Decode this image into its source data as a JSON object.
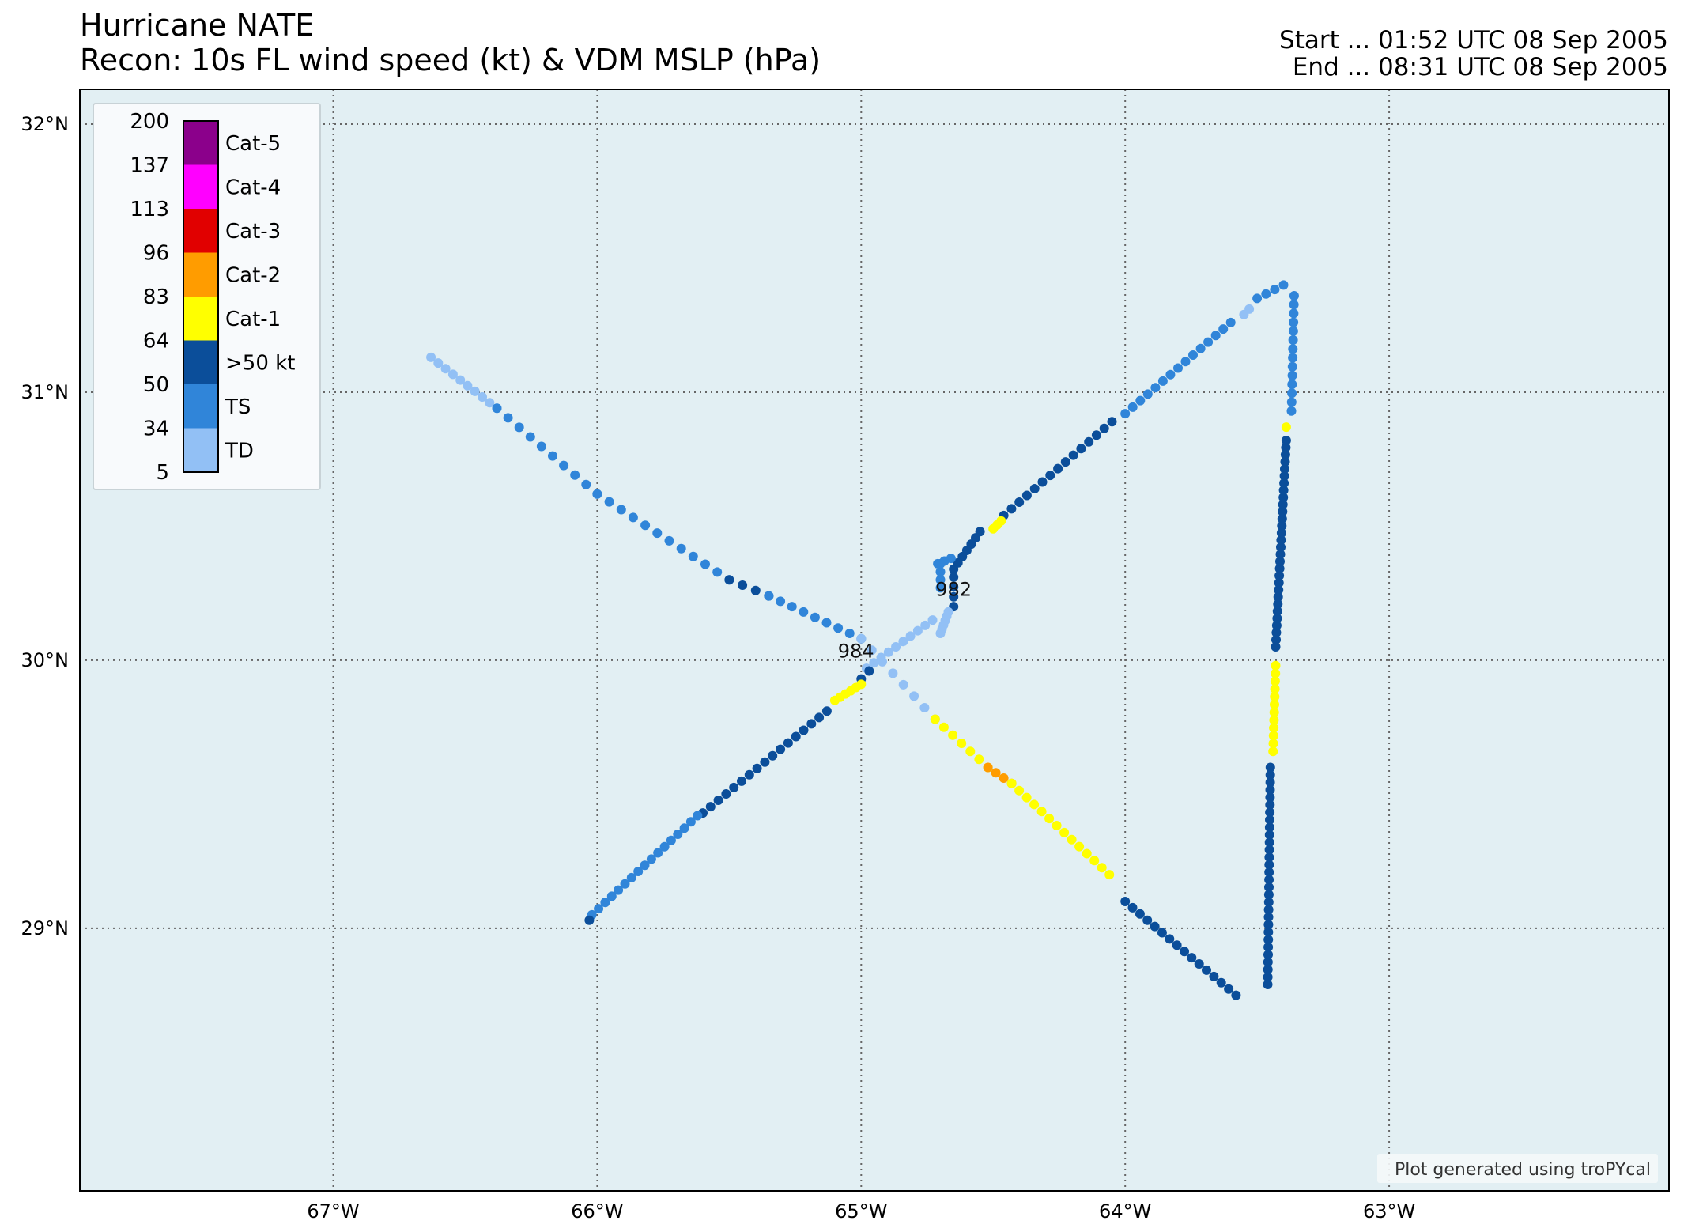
{
  "header": {
    "title_line1": "Hurricane NATE",
    "title_line2": "Recon: 10s FL wind speed (kt) & VDM MSLP (hPa)",
    "start_line": "Start ... 01:52 UTC 08 Sep 2005",
    "end_line": "End ... 08:31 UTC 08 Sep 2005"
  },
  "map": {
    "lon_range": [
      -67.96,
      -61.94
    ],
    "lat_range": [
      28.02,
      32.13
    ],
    "lon_ticks": [
      -67,
      -66,
      -65,
      -64,
      -63
    ],
    "lon_tick_labels": [
      "67°W",
      "66°W",
      "65°W",
      "64°W",
      "63°W"
    ],
    "lat_ticks": [
      29,
      30,
      31,
      32
    ],
    "lat_tick_labels": [
      "29°N",
      "30°N",
      "31°N",
      "32°N"
    ],
    "ocean_color": "#e2eff3",
    "grid": "dotted"
  },
  "legend": {
    "bounds": [
      "5",
      "34",
      "50",
      "64",
      "83",
      "96",
      "113",
      "137",
      "200"
    ],
    "categories": [
      {
        "label": "TD",
        "color": "#92c0f5"
      },
      {
        "label": "TS",
        "color": "#3085d9"
      },
      {
        "label": ">50 kt",
        "color": "#0b4e9a"
      },
      {
        "label": "Cat-1",
        "color": "#ffff00"
      },
      {
        "label": "Cat-2",
        "color": "#ff9c00"
      },
      {
        "label": "Cat-3",
        "color": "#e10000"
      },
      {
        "label": "Cat-4",
        "color": "#ff00ff"
      },
      {
        "label": "Cat-5",
        "color": "#8b008b"
      }
    ]
  },
  "mslp_labels": [
    {
      "text": "984",
      "lon": -65.02,
      "lat": 30.01
    },
    {
      "text": "982",
      "lon": -64.65,
      "lat": 30.24
    }
  ],
  "chart_data": {
    "type": "scatter",
    "x_label": "longitude",
    "y_label": "latitude",
    "segments": [
      {
        "from": [
          -66.63,
          31.13
        ],
        "to": [
          -66.38,
          30.94
        ],
        "n": 10,
        "cat": "TD"
      },
      {
        "from": [
          -66.38,
          30.94
        ],
        "to": [
          -66.0,
          30.62
        ],
        "n": 10,
        "cat": "TS"
      },
      {
        "from": [
          -66.0,
          30.62
        ],
        "to": [
          -65.5,
          30.3
        ],
        "n": 12,
        "cat": "TS"
      },
      {
        "from": [
          -65.5,
          30.3
        ],
        "to": [
          -65.35,
          30.24
        ],
        "n": 4,
        "cat": ">50 kt"
      },
      {
        "from": [
          -65.35,
          30.24
        ],
        "to": [
          -65.0,
          30.08
        ],
        "n": 9,
        "cat": "TS"
      },
      {
        "from": [
          -65.0,
          30.08
        ],
        "to": [
          -64.72,
          29.78
        ],
        "n": 8,
        "cat": "TD"
      },
      {
        "from": [
          -64.72,
          29.78
        ],
        "to": [
          -64.52,
          29.6
        ],
        "n": 7,
        "cat": "Cat-1"
      },
      {
        "from": [
          -64.52,
          29.6
        ],
        "to": [
          -64.43,
          29.54
        ],
        "n": 4,
        "cat": "Cat-2"
      },
      {
        "from": [
          -64.43,
          29.54
        ],
        "to": [
          -64.06,
          29.2
        ],
        "n": 14,
        "cat": "Cat-1"
      },
      {
        "from": [
          -64.0,
          29.1
        ],
        "to": [
          -63.58,
          28.75
        ],
        "n": 16,
        "cat": ">50 kt"
      },
      {
        "from": [
          -63.46,
          28.79
        ],
        "to": [
          -63.45,
          29.6
        ],
        "n": 30,
        "cat": ">50 kt"
      },
      {
        "from": [
          -63.44,
          29.66
        ],
        "to": [
          -63.43,
          29.98
        ],
        "n": 12,
        "cat": "Cat-1"
      },
      {
        "from": [
          -63.43,
          30.05
        ],
        "to": [
          -63.39,
          30.82
        ],
        "n": 30,
        "cat": ">50 kt"
      },
      {
        "from": [
          -63.39,
          30.87
        ],
        "to": [
          -63.39,
          30.87
        ],
        "n": 1,
        "cat": "Cat-1"
      },
      {
        "from": [
          -63.37,
          30.93
        ],
        "to": [
          -63.36,
          31.36
        ],
        "n": 14,
        "cat": "TS"
      },
      {
        "from": [
          -63.4,
          31.4
        ],
        "to": [
          -63.5,
          31.35
        ],
        "n": 4,
        "cat": "TS"
      },
      {
        "from": [
          -63.53,
          31.31
        ],
        "to": [
          -63.55,
          31.29
        ],
        "n": 2,
        "cat": "TD"
      },
      {
        "from": [
          -63.6,
          31.26
        ],
        "to": [
          -64.0,
          30.92
        ],
        "n": 15,
        "cat": "TS"
      },
      {
        "from": [
          -64.05,
          30.89
        ],
        "to": [
          -64.46,
          30.54
        ],
        "n": 15,
        "cat": ">50 kt"
      },
      {
        "from": [
          -64.47,
          30.52
        ],
        "to": [
          -64.5,
          30.49
        ],
        "n": 3,
        "cat": "Cat-1"
      },
      {
        "from": [
          -64.55,
          30.48
        ],
        "to": [
          -64.65,
          30.34
        ],
        "n": 7,
        "cat": ">50 kt"
      },
      {
        "from": [
          -64.66,
          30.38
        ],
        "to": [
          -64.71,
          30.36
        ],
        "n": 3,
        "cat": "TS"
      },
      {
        "from": [
          -64.7,
          30.36
        ],
        "to": [
          -64.7,
          30.27
        ],
        "n": 4,
        "cat": "TS"
      },
      {
        "from": [
          -64.65,
          30.31
        ],
        "to": [
          -64.65,
          30.2
        ],
        "n": 4,
        "cat": ">50 kt"
      },
      {
        "from": [
          -64.67,
          30.18
        ],
        "to": [
          -64.7,
          30.1
        ],
        "n": 6,
        "cat": "TD"
      },
      {
        "from": [
          -64.73,
          30.15
        ],
        "to": [
          -64.98,
          29.97
        ],
        "n": 10,
        "cat": "TD"
      },
      {
        "from": [
          -64.97,
          29.96
        ],
        "to": [
          -65.0,
          29.93
        ],
        "n": 2,
        "cat": ">50 kt"
      },
      {
        "from": [
          -65.0,
          29.91
        ],
        "to": [
          -65.1,
          29.85
        ],
        "n": 6,
        "cat": "Cat-1"
      },
      {
        "from": [
          -65.13,
          29.81
        ],
        "to": [
          -65.6,
          29.43
        ],
        "n": 17,
        "cat": ">50 kt"
      },
      {
        "from": [
          -65.62,
          29.42
        ],
        "to": [
          -66.02,
          29.05
        ],
        "n": 17,
        "cat": "TS"
      },
      {
        "from": [
          -66.03,
          29.03
        ],
        "to": [
          -66.02,
          29.02
        ],
        "n": 1,
        "cat": ">50 kt"
      }
    ]
  },
  "footer": {
    "credit": "Plot generated using troPYcal"
  }
}
